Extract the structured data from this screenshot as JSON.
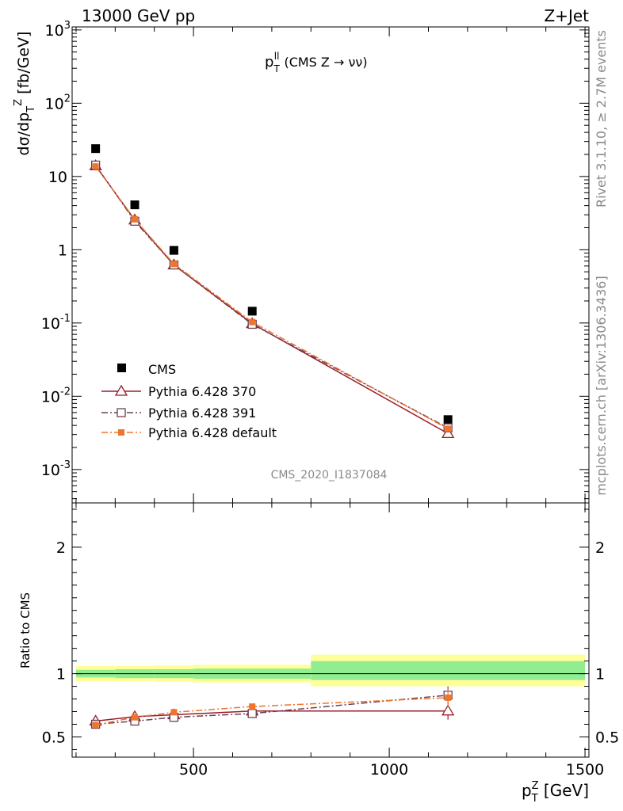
{
  "header": {
    "left": "13000 GeV pp",
    "right": "Z+Jet"
  },
  "side_labels": {
    "rivet": "Rivet 3.1.10, ≥ 2.7M events",
    "mcplots": "mcplots.cern.ch [arXiv:1306.3436]"
  },
  "analysis_id": "CMS_2020_I1837084",
  "chart_data": [
    {
      "type": "scatter",
      "panel": "main",
      "title": "p_T^ll (CMS Z → νν)",
      "ylabel": "dσ/dp_T^Z [fb/GeV]",
      "xlabel": "",
      "xlim": [
        190,
        1510
      ],
      "ylim": [
        0.00035,
        1100
      ],
      "yscale": "log",
      "x_ticks": [
        500,
        1000,
        1500
      ],
      "y_tick_labels": [
        "10^3",
        "10^2",
        "10",
        "1",
        "10^-1",
        "10^-2",
        "10^-3"
      ],
      "legend_position": "bottom-left",
      "x": [
        250,
        350,
        450,
        650,
        1150
      ],
      "series": [
        {
          "name": "CMS",
          "values": [
            24,
            4.1,
            0.98,
            0.145,
            0.0048
          ],
          "color": "#000000",
          "marker": "filled-square"
        },
        {
          "name": "Pythia 6.428 370",
          "values": [
            14.0,
            2.55,
            0.62,
            0.098,
            0.0031
          ],
          "color": "#9b1d2b",
          "marker": "open-triangle",
          "line": "solid"
        },
        {
          "name": "Pythia 6.428 391",
          "values": [
            14.3,
            2.45,
            0.62,
            0.096,
            0.0037
          ],
          "color": "#6b3f52",
          "marker": "open-square",
          "line": "dash-dot"
        },
        {
          "name": "Pythia 6.428 default",
          "values": [
            13.7,
            2.6,
            0.64,
            0.103,
            0.0036
          ],
          "color": "#f0742a",
          "marker": "filled-square",
          "line": "dash-dot"
        }
      ]
    },
    {
      "type": "line",
      "panel": "ratio",
      "ylabel": "Ratio to CMS",
      "xlabel": "p_T^Z [GeV]",
      "xlim": [
        190,
        1510
      ],
      "ylim": [
        0.34,
        2.35
      ],
      "y_ticks": [
        0.5,
        1,
        2
      ],
      "x_ticks": [
        500,
        1000,
        1500
      ],
      "bands": [
        {
          "x_range": [
            200,
            300
          ],
          "yellow": [
            0.94,
            1.06
          ],
          "green": [
            0.97,
            1.03
          ]
        },
        {
          "x_range": [
            300,
            400
          ],
          "yellow": [
            0.94,
            1.06
          ],
          "green": [
            0.965,
            1.035
          ]
        },
        {
          "x_range": [
            400,
            500
          ],
          "yellow": [
            0.935,
            1.065
          ],
          "green": [
            0.965,
            1.035
          ]
        },
        {
          "x_range": [
            500,
            800
          ],
          "yellow": [
            0.93,
            1.07
          ],
          "green": [
            0.96,
            1.04
          ]
        },
        {
          "x_range": [
            800,
            1500
          ],
          "yellow": [
            0.9,
            1.15
          ],
          "green": [
            0.95,
            1.1
          ]
        }
      ],
      "x": [
        250,
        350,
        450,
        650,
        1150
      ],
      "series": [
        {
          "name": "Pythia 6.428 370",
          "values": [
            0.625,
            0.66,
            0.675,
            0.705,
            0.705
          ],
          "color": "#9b1d2b"
        },
        {
          "name": "Pythia 6.428 391",
          "values": [
            0.6,
            0.625,
            0.655,
            0.685,
            0.83
          ],
          "color": "#6b3f52"
        },
        {
          "name": "Pythia 6.428 default",
          "values": [
            0.595,
            0.655,
            0.695,
            0.74,
            0.81
          ],
          "color": "#f0742a"
        }
      ]
    }
  ]
}
